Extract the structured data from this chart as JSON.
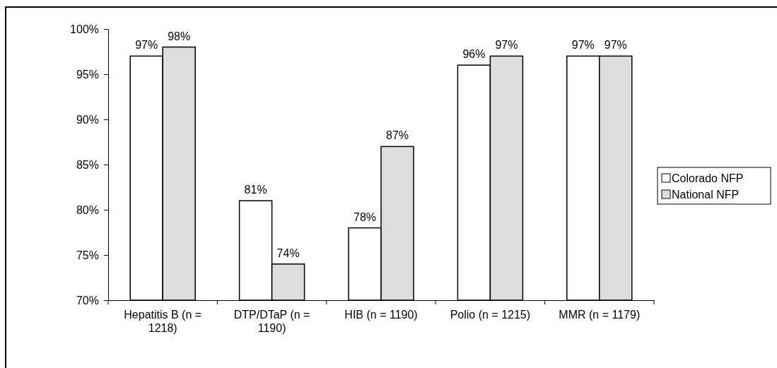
{
  "chart_data": {
    "type": "bar",
    "categories": [
      "Hepatitis B (n = 1218)",
      "DTP/DTaP (n = 1190)",
      "HIB (n = 1190)",
      "Polio (n = 1215)",
      "MMR (n = 1179)"
    ],
    "series": [
      {
        "name": "Colorado NFP",
        "color": "#ffffff",
        "values": [
          97,
          81,
          78,
          96,
          97
        ]
      },
      {
        "name": "National NFP",
        "color": "#dddddd",
        "values": [
          98,
          74,
          87,
          97,
          97
        ]
      }
    ],
    "ylim": [
      70,
      100
    ],
    "yticks": [
      {
        "value": 70,
        "label": "70%"
      },
      {
        "value": 75,
        "label": "75%"
      },
      {
        "value": 80,
        "label": "80%"
      },
      {
        "value": 85,
        "label": "85%"
      },
      {
        "value": 90,
        "label": "90%"
      },
      {
        "value": 95,
        "label": "95%"
      },
      {
        "value": 100,
        "label": "100%"
      }
    ],
    "value_labels": [
      [
        "97%",
        "81%",
        "78%",
        "96%",
        "97%"
      ],
      [
        "98%",
        "74%",
        "87%",
        "97%",
        "97%"
      ]
    ],
    "grid": false,
    "legend": "right"
  }
}
